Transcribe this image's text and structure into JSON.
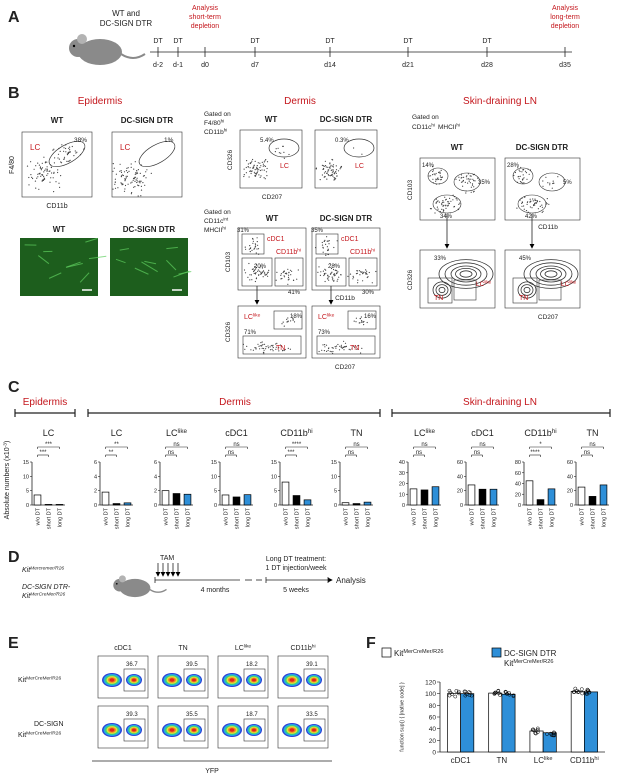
{
  "panel_a": {
    "label": "A",
    "group_lines": [
      "WT and",
      "DC-SIGN DTR"
    ],
    "timeline": [
      {
        "treatment": "DT",
        "day": "d-2"
      },
      {
        "treatment": "DT",
        "day": "d-1"
      },
      {
        "day": "d0",
        "analysis": [
          "Analysis",
          "short-term",
          "depletion"
        ]
      },
      {
        "treatment": "DT",
        "day": "d7"
      },
      {
        "treatment": "DT",
        "day": "d14"
      },
      {
        "treatment": "DT",
        "day": "d21"
      },
      {
        "treatment": "DT",
        "day": "d28"
      },
      {
        "day": "d35",
        "analysis": [
          "Analysis",
          "long-term",
          "depletion"
        ]
      }
    ]
  },
  "panel_b": {
    "label": "B",
    "epidermis": {
      "title": "Epidermis",
      "plots": [
        {
          "title": "WT",
          "gate": "LC",
          "percent": "38%"
        },
        {
          "title": "DC-SIGN DTR",
          "gate": "LC",
          "percent": "1%"
        }
      ],
      "y_axis": "F4/80",
      "x_axis": "CD11b",
      "images": [
        {
          "title": "WT"
        },
        {
          "title": "DC-SIGN DTR"
        }
      ]
    },
    "dermis": {
      "title": "Dermis",
      "gate_1": [
        {
          "text": "Gated on"
        },
        {
          "text": "F4/80",
          "sup": "hi"
        },
        {
          "text": "CD11b",
          "sup": "hi"
        }
      ],
      "row_1": [
        {
          "title": "WT",
          "gate": "LC",
          "percent": "5.4%"
        },
        {
          "title": "DC-SIGN DTR",
          "gate": "LC",
          "percent": "0.3%"
        }
      ],
      "row_1_y": "CD326",
      "row_1_x": "CD207",
      "gate_2": [
        {
          "text": "Gated on"
        },
        {
          "text": "CD11c",
          "sup": "int"
        },
        {
          "text": "MHCII",
          "sup": "hi"
        }
      ],
      "row_2": [
        {
          "title": "WT",
          "cdc1": {
            "text": "cDC1",
            "percent": "31%"
          },
          "middle": "20%",
          "cd11b": {
            "text": "CD11b",
            "sup": "hi",
            "percent": "41%"
          }
        },
        {
          "title": "DC-SIGN DTR",
          "cdc1": {
            "text": "cDC1",
            "percent": "35%"
          },
          "middle": "28%",
          "cd11b": {
            "text": "CD11b",
            "sup": "hi",
            "percent": "30%"
          }
        }
      ],
      "row_2_y": "CD103",
      "row_2_x": "CD11b",
      "row_3": [
        {
          "lc": {
            "text": "LC",
            "sup": "like",
            "percent": "18%"
          },
          "tn": {
            "text": "TN",
            "percent": "71%"
          }
        },
        {
          "lc": {
            "text": "LC",
            "sup": "like",
            "percent": "16%"
          },
          "tn": {
            "text": "TN",
            "percent": "73%"
          }
        }
      ],
      "row_3_y": "CD326",
      "row_3_x": "CD207"
    },
    "lymph_node": {
      "title": "Skin-draining LN",
      "gate": [
        {
          "text": "Gated on"
        },
        {
          "text": "CD11c",
          "sup": "hi"
        },
        {
          "text": "MHCII",
          "sup": "hi"
        }
      ],
      "row_1": [
        {
          "title": "WT",
          "percents": [
            "14%",
            "35%",
            "34%"
          ]
        },
        {
          "title": "DC-SIGN DTR",
          "percents": [
            "28%",
            "5%",
            "42%"
          ]
        }
      ],
      "row_1_y": "CD103",
      "row_1_x": "CD11b",
      "row_2": [
        {
          "percent": "33%",
          "lc": {
            "text": "LC",
            "sup": "like"
          },
          "tn": "TN"
        },
        {
          "percent": "45%",
          "lc": {
            "text": "LC",
            "sup": "like"
          },
          "tn": "TN"
        }
      ],
      "row_2_y": "CD326",
      "row_2_x": "CD207"
    }
  },
  "panel_c": {
    "label": "C",
    "y_label": {
      "text": "Absolute numbers (x10",
      "sup": "-3",
      "tail": ")"
    },
    "groups": [
      "Epidermis",
      "Dermis",
      "Skin-draining LN"
    ],
    "colors": [
      "#ffffff",
      "#000000",
      "#2e8fd8"
    ],
    "charts": [
      {
        "type": "bar",
        "title": {
          "text": "LC"
        },
        "categories": [
          "w/o DT",
          "short DT",
          "long DT"
        ],
        "values": [
          3.5,
          0.2,
          0.2
        ],
        "ylim": [
          0,
          15
        ],
        "yticks": [
          0,
          5,
          10,
          15
        ],
        "significance": [
          "***",
          "***"
        ]
      },
      {
        "type": "bar",
        "title": {
          "text": "LC"
        },
        "categories": [
          "w/o DT",
          "short DT",
          "long DT"
        ],
        "values": [
          1.8,
          0.2,
          0.3
        ],
        "ylim": [
          0,
          6
        ],
        "yticks": [
          0,
          2,
          4,
          6
        ],
        "significance": [
          "**",
          "**"
        ]
      },
      {
        "type": "bar",
        "title": {
          "text": "LC",
          "sup": "like"
        },
        "categories": [
          "w/o DT",
          "short DT",
          "long DT"
        ],
        "values": [
          2,
          1.6,
          1.5
        ],
        "ylim": [
          0,
          6
        ],
        "yticks": [
          0,
          2,
          4,
          6
        ],
        "significance": [
          "ns",
          "ns"
        ]
      },
      {
        "type": "bar",
        "title": {
          "text": "cDC1"
        },
        "categories": [
          "w/o DT",
          "short DT",
          "long DT"
        ],
        "values": [
          3.5,
          2.8,
          3.6
        ],
        "ylim": [
          0,
          15
        ],
        "yticks": [
          0,
          5,
          10,
          15
        ],
        "significance": [
          "ns",
          "ns"
        ]
      },
      {
        "type": "bar",
        "title": {
          "text": "CD11b",
          "sup": "hi"
        },
        "categories": [
          "w/o DT",
          "short DT",
          "long DT"
        ],
        "values": [
          8,
          3.3,
          1.8
        ],
        "ylim": [
          0,
          15
        ],
        "yticks": [
          0,
          5,
          10,
          15
        ],
        "significance": [
          "****",
          "***"
        ]
      },
      {
        "type": "bar",
        "title": {
          "text": "TN"
        },
        "categories": [
          "w/o DT",
          "short DT",
          "long DT"
        ],
        "values": [
          0.8,
          0.5,
          1
        ],
        "ylim": [
          0,
          15
        ],
        "yticks": [
          0,
          5,
          10,
          15
        ],
        "significance": [
          "ns",
          "ns"
        ]
      },
      {
        "type": "bar",
        "title": {
          "text": "LC",
          "sup": "like"
        },
        "categories": [
          "w/o DT",
          "short DT",
          "long DT"
        ],
        "values": [
          15,
          14,
          17
        ],
        "ylim": [
          0,
          40
        ],
        "yticks": [
          0,
          10,
          20,
          30,
          40
        ],
        "significance": [
          "ns",
          "ns"
        ]
      },
      {
        "type": "bar",
        "title": {
          "text": "cDC1"
        },
        "categories": [
          "w/o DT",
          "short DT",
          "long DT"
        ],
        "values": [
          28,
          22,
          22
        ],
        "ylim": [
          0,
          60
        ],
        "yticks": [
          0,
          20,
          40,
          60
        ],
        "significance": [
          "ns",
          "ns"
        ]
      },
      {
        "type": "bar",
        "title": {
          "text": "CD11b",
          "sup": "hi"
        },
        "categories": [
          "w/o DT",
          "short DT",
          "long DT"
        ],
        "values": [
          45,
          10,
          30
        ],
        "ylim": [
          0,
          80
        ],
        "yticks": [
          0,
          20,
          40,
          60,
          80
        ],
        "significance": [
          "*",
          "****"
        ]
      },
      {
        "type": "bar",
        "title": {
          "text": "TN"
        },
        "categories": [
          "w/o DT",
          "short DT",
          "long DT"
        ],
        "values": [
          25,
          12,
          28
        ],
        "ylim": [
          0,
          60
        ],
        "yticks": [
          0,
          20,
          40,
          60
        ],
        "significance": [
          "ns",
          "ns"
        ]
      }
    ]
  },
  "panel_d": {
    "label": "D",
    "groups": [
      [
        {
          "text": "Kit",
          "sup": "Mercremer/R26"
        }
      ],
      [
        {
          "text": "DC-SIGN DTR-"
        },
        {
          "text": "Kit",
          "sup": "MerCreMer/R26"
        }
      ]
    ],
    "tam": "TAM",
    "interval_1": "4 months",
    "treatment": [
      "Long DT treatment:",
      "1 DT injection/week"
    ],
    "interval_2": "5 weeks",
    "endpoint": "Analysis"
  },
  "panel_e": {
    "label": "E",
    "columns": [
      {
        "text": "cDC1"
      },
      {
        "text": "TN"
      },
      {
        "text": "LC",
        "sup": "like"
      },
      {
        "text": "CD11b",
        "sup": "hi"
      }
    ],
    "rows": [
      {
        "label": [
          {
            "text": "Kit",
            "sup": "MerCreMer/R26"
          }
        ],
        "percents": [
          "36.7",
          "39.5",
          "18.2",
          "39.1"
        ]
      },
      {
        "label": [
          {
            "text": "DC-SIGN"
          },
          {
            "text": "Kit",
            "sup": "MerCreMer/R26"
          }
        ],
        "percents": [
          "39.3",
          "35.5",
          "18.7",
          "33.5"
        ]
      }
    ],
    "x_axis": "YFP"
  },
  "panel_f": {
    "label": "F",
    "chart_data": {
      "type": "bar",
      "y_label": "% normalized YFP",
      "categories": [
        {
          "text": "cDC1"
        },
        {
          "text": "TN"
        },
        {
          "text": "LC",
          "sup": "like"
        },
        {
          "text": "CD11b",
          "sup": "hi"
        }
      ],
      "series": [
        {
          "name": [
            {
              "text": "Kit",
              "sup": "MerCreMer/R26"
            }
          ],
          "color": "#ffffff",
          "values": [
            100,
            101,
            36,
            104
          ]
        },
        {
          "name": [
            {
              "text": "DC-SIGN DTR"
            },
            {
              "text": "Kit",
              "sup": "MerCreMer/R26"
            }
          ],
          "color": "#2e8fd8",
          "values": [
            100,
            99,
            33,
            103
          ]
        }
      ],
      "ylim": [
        0,
        120
      ],
      "yticks": [
        0,
        20,
        40,
        60,
        80,
        100,
        120
      ]
    }
  }
}
